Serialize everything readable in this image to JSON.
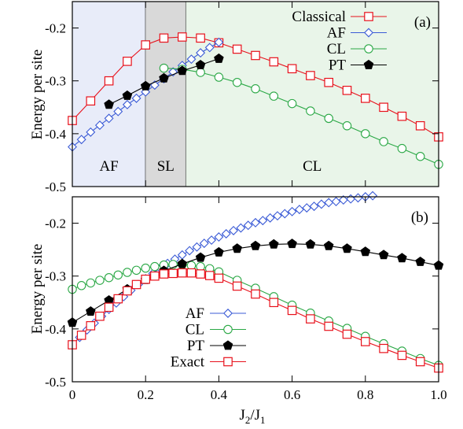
{
  "chart_data": [
    {
      "type": "line",
      "panel_label": "(a)",
      "ylabel": "Energy per site",
      "xlabel": "",
      "xlim": [
        0,
        1.0
      ],
      "ylim": [
        -0.5,
        -0.15
      ],
      "yticks": [
        -0.2,
        -0.3,
        -0.4,
        -0.5
      ],
      "ytick_labels": [
        "-0.2",
        "-0.3",
        "-0.4",
        "-0.5"
      ],
      "grid": false,
      "legend_position": "top-right",
      "regions": [
        {
          "label": "AF",
          "x0": 0.0,
          "x1": 0.2,
          "color": "#e8ecf9"
        },
        {
          "label": "SL",
          "x0": 0.2,
          "x1": 0.31,
          "color": "#d9d9d9"
        },
        {
          "label": "CL",
          "x0": 0.31,
          "x1": 1.0,
          "color": "#e9f5e9"
        }
      ],
      "series": [
        {
          "name": "Classical",
          "color": "#e8111b",
          "marker": "square",
          "x": [
            0,
            0.05,
            0.1,
            0.15,
            0.2,
            0.25,
            0.3,
            0.35,
            0.4,
            0.45,
            0.5,
            0.55,
            0.6,
            0.65,
            0.7,
            0.75,
            0.8,
            0.85,
            0.9,
            0.95,
            1.0
          ],
          "y": [
            -0.375,
            -0.338,
            -0.3,
            -0.263,
            -0.232,
            -0.219,
            -0.217,
            -0.219,
            -0.228,
            -0.24,
            -0.252,
            -0.264,
            -0.277,
            -0.29,
            -0.303,
            -0.318,
            -0.333,
            -0.35,
            -0.367,
            -0.385,
            -0.406
          ]
        },
        {
          "name": "AF",
          "color": "#3b5bd6",
          "marker": "diamond",
          "x": [
            0,
            0.025,
            0.05,
            0.075,
            0.1,
            0.125,
            0.15,
            0.175,
            0.2,
            0.225,
            0.25,
            0.275,
            0.3,
            0.325,
            0.35,
            0.375,
            0.4
          ],
          "y": [
            -0.425,
            -0.411,
            -0.397,
            -0.384,
            -0.371,
            -0.358,
            -0.345,
            -0.333,
            -0.321,
            -0.308,
            -0.296,
            -0.283,
            -0.271,
            -0.259,
            -0.247,
            -0.237,
            -0.227
          ]
        },
        {
          "name": "CL",
          "color": "#2aa845",
          "marker": "circle",
          "x": [
            0.25,
            0.3,
            0.35,
            0.4,
            0.45,
            0.5,
            0.55,
            0.6,
            0.65,
            0.7,
            0.75,
            0.8,
            0.85,
            0.9,
            0.95,
            1.0
          ],
          "y": [
            -0.276,
            -0.278,
            -0.284,
            -0.293,
            -0.303,
            -0.315,
            -0.329,
            -0.343,
            -0.357,
            -0.371,
            -0.385,
            -0.4,
            -0.415,
            -0.428,
            -0.443,
            -0.458
          ]
        },
        {
          "name": "PT",
          "color": "#000000",
          "marker": "pentagon",
          "x": [
            0.1,
            0.15,
            0.2,
            0.25,
            0.3,
            0.35,
            0.4
          ],
          "y": [
            -0.345,
            -0.328,
            -0.31,
            -0.295,
            -0.281,
            -0.27,
            -0.258
          ]
        }
      ]
    },
    {
      "type": "line",
      "panel_label": "(b)",
      "ylabel": "Energy per site",
      "xlabel": "J2/J1",
      "xlim": [
        0,
        1.0
      ],
      "ylim": [
        -0.5,
        -0.15
      ],
      "xticks": [
        0,
        0.2,
        0.4,
        0.6,
        0.8,
        1.0
      ],
      "xtick_labels": [
        "0",
        "0.2",
        "0.4",
        "0.6",
        "0.8",
        "1.0"
      ],
      "yticks": [
        -0.2,
        -0.3,
        -0.4,
        -0.5
      ],
      "ytick_labels": [
        "-0.2",
        "-0.3",
        "-0.4",
        "-0.5"
      ],
      "grid": false,
      "legend_position": "bottom-left",
      "series": [
        {
          "name": "AF",
          "color": "#3b5bd6",
          "marker": "diamond",
          "x": [
            0,
            0.02,
            0.04,
            0.06,
            0.08,
            0.1,
            0.12,
            0.14,
            0.16,
            0.18,
            0.2,
            0.22,
            0.24,
            0.26,
            0.28,
            0.3,
            0.32,
            0.34,
            0.36,
            0.38,
            0.4,
            0.42,
            0.44,
            0.46,
            0.48,
            0.5,
            0.52,
            0.54,
            0.56,
            0.58,
            0.6,
            0.62,
            0.64,
            0.66,
            0.68,
            0.7,
            0.72,
            0.74,
            0.76,
            0.78,
            0.8,
            0.82
          ],
          "y": [
            -0.43,
            -0.416,
            -0.402,
            -0.389,
            -0.376,
            -0.363,
            -0.351,
            -0.339,
            -0.327,
            -0.316,
            -0.305,
            -0.295,
            -0.285,
            -0.276,
            -0.268,
            -0.26,
            -0.252,
            -0.245,
            -0.238,
            -0.232,
            -0.226,
            -0.22,
            -0.214,
            -0.209,
            -0.204,
            -0.199,
            -0.195,
            -0.19,
            -0.186,
            -0.182,
            -0.178,
            -0.174,
            -0.171,
            -0.168,
            -0.164,
            -0.161,
            -0.159,
            -0.156,
            -0.154,
            -0.152,
            -0.15,
            -0.148
          ]
        },
        {
          "name": "CL",
          "color": "#2aa845",
          "marker": "circle",
          "x": [
            0,
            0.025,
            0.05,
            0.075,
            0.1,
            0.125,
            0.15,
            0.175,
            0.2,
            0.225,
            0.25,
            0.275,
            0.3,
            0.325,
            0.35,
            0.375,
            0.4,
            0.45,
            0.5,
            0.55,
            0.6,
            0.65,
            0.7,
            0.75,
            0.8,
            0.85,
            0.9,
            0.95,
            1.0
          ],
          "y": [
            -0.325,
            -0.318,
            -0.313,
            -0.308,
            -0.303,
            -0.298,
            -0.293,
            -0.289,
            -0.285,
            -0.282,
            -0.279,
            -0.278,
            -0.278,
            -0.28,
            -0.282,
            -0.286,
            -0.292,
            -0.308,
            -0.323,
            -0.339,
            -0.355,
            -0.37,
            -0.385,
            -0.399,
            -0.414,
            -0.428,
            -0.442,
            -0.456,
            -0.469
          ]
        },
        {
          "name": "PT",
          "color": "#000000",
          "marker": "pentagon",
          "x": [
            0,
            0.05,
            0.1,
            0.15,
            0.2,
            0.25,
            0.3,
            0.35,
            0.4,
            0.45,
            0.5,
            0.55,
            0.6,
            0.65,
            0.7,
            0.75,
            0.8,
            0.85,
            0.9,
            0.95,
            1.0
          ],
          "y": [
            -0.388,
            -0.367,
            -0.346,
            -0.325,
            -0.307,
            -0.29,
            -0.277,
            -0.265,
            -0.255,
            -0.248,
            -0.243,
            -0.24,
            -0.239,
            -0.24,
            -0.243,
            -0.248,
            -0.254,
            -0.26,
            -0.266,
            -0.273,
            -0.28
          ]
        },
        {
          "name": "Exact",
          "color": "#e8111b",
          "marker": "square",
          "x": [
            0,
            0.025,
            0.05,
            0.075,
            0.1,
            0.125,
            0.15,
            0.175,
            0.2,
            0.225,
            0.25,
            0.275,
            0.3,
            0.325,
            0.35,
            0.375,
            0.4,
            0.45,
            0.5,
            0.55,
            0.6,
            0.65,
            0.7,
            0.75,
            0.8,
            0.85,
            0.9,
            0.95,
            1.0
          ],
          "y": [
            -0.43,
            -0.412,
            -0.394,
            -0.376,
            -0.359,
            -0.343,
            -0.328,
            -0.316,
            -0.306,
            -0.3,
            -0.296,
            -0.295,
            -0.294,
            -0.294,
            -0.296,
            -0.299,
            -0.304,
            -0.319,
            -0.334,
            -0.35,
            -0.365,
            -0.381,
            -0.395,
            -0.41,
            -0.424,
            -0.437,
            -0.45,
            -0.462,
            -0.474
          ]
        }
      ]
    }
  ]
}
